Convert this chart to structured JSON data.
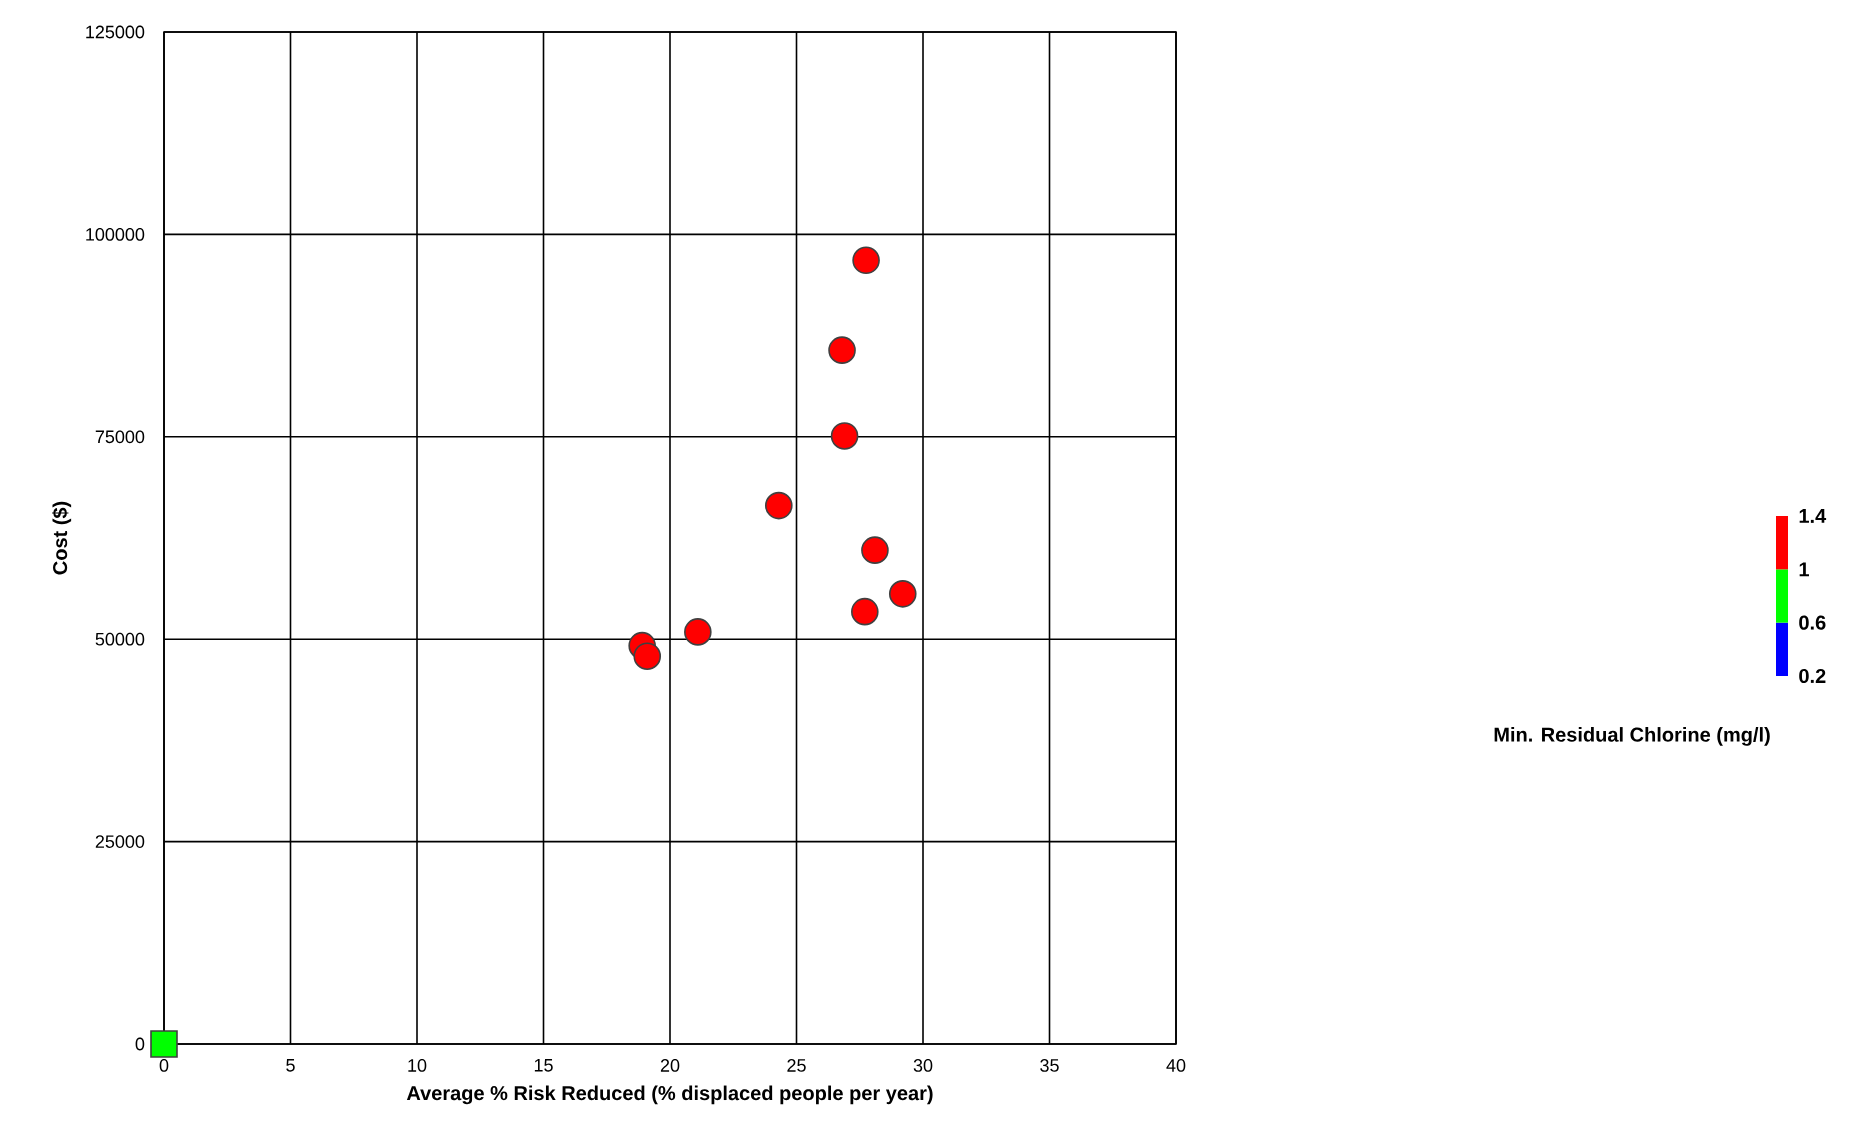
{
  "chart_data": {
    "type": "scatter",
    "xlabel": "Average % Risk Reduced (% displaced people per year)",
    "ylabel": "Cost ($)",
    "clabel": "Min. Residual Chlorine (mg/l)",
    "xlim": [
      0,
      40
    ],
    "ylim": [
      0,
      125000
    ],
    "xticks": [
      0,
      5,
      10,
      15,
      20,
      25,
      30,
      35,
      40
    ],
    "yticks": [
      0,
      25000,
      50000,
      75000,
      100000,
      125000
    ],
    "clim": [
      0.2,
      1.4
    ],
    "cticks": [
      0.2,
      0.6,
      1,
      1.4
    ],
    "grid": true,
    "series": [
      {
        "color": "#ff0000",
        "marker": "circle",
        "x": [
          27.75,
          26.8,
          26.9,
          24.3,
          28.1,
          29.2,
          27.7,
          21.1,
          18.9,
          19.1
        ],
        "values": [
          96800,
          85700,
          75100,
          66500,
          61000,
          55600,
          53400,
          50900,
          49200,
          47900
        ]
      },
      {
        "color": "#00ff00",
        "marker": "square",
        "x": [
          0
        ],
        "values": [
          0
        ]
      }
    ]
  }
}
